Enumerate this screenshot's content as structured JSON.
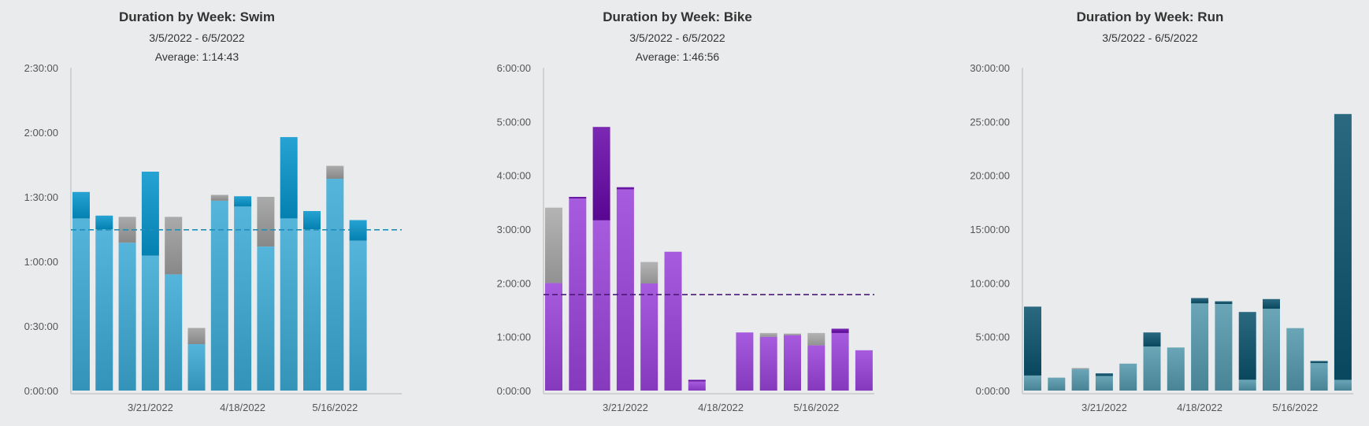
{
  "chart_data": [
    {
      "type": "bar",
      "title": "Duration by Week: Swim",
      "subtitle": "3/5/2022 - 6/5/2022",
      "average_label": "Average: 1:14:43",
      "average_hours": 1.245,
      "yticks": [
        "0:00:00",
        "0:30:00",
        "1:00:00",
        "1:30:00",
        "2:00:00",
        "2:30:00"
      ],
      "ylim_hours": [
        0,
        2.5
      ],
      "xtick_labels": [
        "3/21/2022",
        "4/18/2022",
        "5/16/2022"
      ],
      "xtick_bar_index": [
        3,
        7,
        11
      ],
      "series": [
        {
          "name": "",
          "color": "#4aa9cf",
          "values": [
            1.333,
            1.25,
            1.145,
            1.045,
            0.9,
            0.36,
            1.47,
            1.425,
            1.115,
            1.333,
            1.25,
            1.64,
            1.16
          ]
        },
        {
          "name": "",
          "color": "#9e9e9e",
          "values": [
            0,
            0,
            0.2,
            0,
            0.445,
            0.125,
            0.045,
            0,
            0.385,
            0,
            0,
            0.1,
            0
          ]
        },
        {
          "name": "",
          "color": "#1b97c7",
          "values": [
            0.205,
            0.105,
            0,
            0.65,
            0,
            0,
            0,
            0.08,
            0,
            0.63,
            0.14,
            0,
            0.16
          ]
        }
      ]
    },
    {
      "type": "bar",
      "title": "Duration by Week: Bike",
      "subtitle": "3/5/2022 - 6/5/2022",
      "average_label": "Average: 1:46:56",
      "average_hours": 1.782,
      "yticks": [
        "0:00:00",
        "1:00:00",
        "2:00:00",
        "3:00:00",
        "4:00:00",
        "5:00:00",
        "6:00:00"
      ],
      "ylim_hours": [
        0,
        6
      ],
      "xtick_labels": [
        "3/21/2022",
        "4/18/2022",
        "5/16/2022"
      ],
      "xtick_bar_index": [
        3,
        7,
        11
      ],
      "series": [
        {
          "name": "",
          "color": "#9b4fd2",
          "values": [
            2.0,
            3.57,
            3.165,
            3.74,
            1.99,
            2.58,
            0.17,
            0,
            1.08,
            1.0,
            1.03,
            0.84,
            1.07,
            0.75
          ]
        },
        {
          "name": "",
          "color": "#a8a8a8",
          "values": [
            1.4,
            0,
            0,
            0,
            0.4,
            0,
            0,
            0,
            0,
            0.07,
            0.03,
            0.23,
            0,
            0
          ]
        },
        {
          "name": "",
          "color": "#6f1da8",
          "values": [
            0,
            0.03,
            1.735,
            0.04,
            0,
            0,
            0.03,
            0,
            0,
            0,
            0,
            0,
            0.08,
            0
          ]
        }
      ]
    },
    {
      "type": "bar",
      "title": "Duration by Week: Run",
      "subtitle": "3/5/2022 - 6/5/2022",
      "average_label": "",
      "yticks": [
        "0:00:00",
        "5:00:00",
        "10:00:00",
        "15:00:00",
        "20:00:00",
        "25:00:00",
        "30:00:00"
      ],
      "ylim_hours": [
        0,
        30
      ],
      "xtick_labels": [
        "3/21/2022",
        "4/18/2022",
        "5/16/2022"
      ],
      "xtick_bar_index": [
        3,
        7,
        11
      ],
      "series": [
        {
          "name": "",
          "color": "#5e9aab",
          "values": [
            1.4,
            1.2,
            2.0,
            1.35,
            2.5,
            4.1,
            4.0,
            8.1,
            8.05,
            1.0,
            7.6,
            5.8,
            2.55,
            1.0
          ]
        },
        {
          "name": "",
          "color": "#a8a8a8",
          "values": [
            0,
            0,
            0.1,
            0,
            0,
            0,
            0,
            0,
            0,
            0,
            0,
            0,
            0,
            0
          ]
        },
        {
          "name": "",
          "color": "#1f5d74",
          "values": [
            6.4,
            0,
            0,
            0.25,
            0,
            1.3,
            0,
            0.5,
            0.25,
            6.3,
            0.9,
            0,
            0.2,
            24.7
          ]
        }
      ]
    }
  ]
}
